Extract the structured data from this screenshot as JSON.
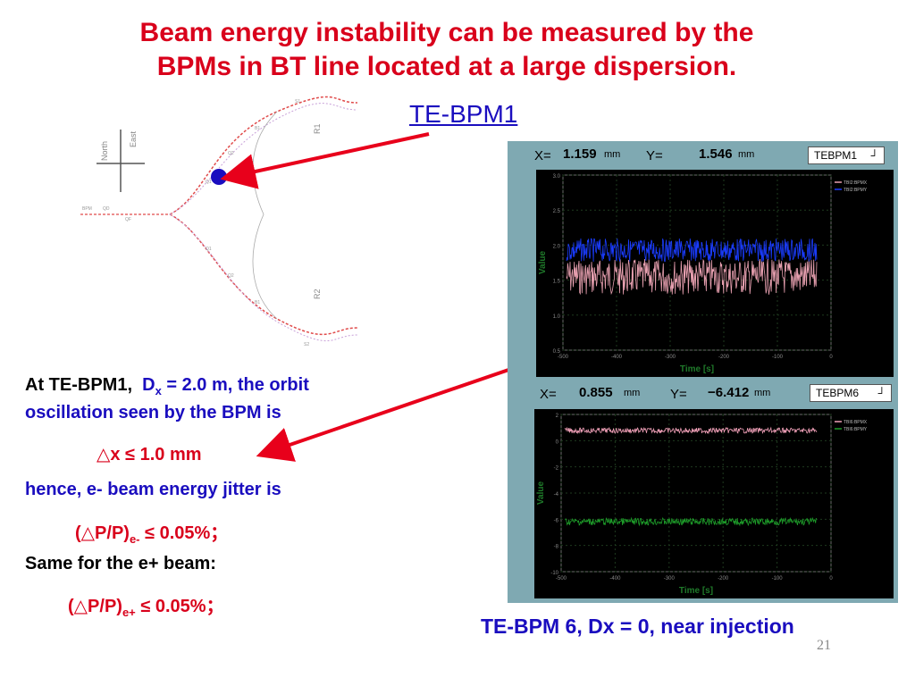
{
  "slide": {
    "title_line1": "Beam energy instability can be measured by the",
    "title_line2": "BPMs in BT line located at a large dispersion.",
    "bpm1_label": "TE-BPM1",
    "page_number": "21",
    "caption": "TE-BPM 6, Dx = 0, near injection"
  },
  "map": {
    "north": "North",
    "east": "East",
    "r1": "R1",
    "r2": "R2"
  },
  "body": {
    "line1_prefix": "At TE-BPM1,",
    "dx_symbol": "D",
    "dx_sub": "x",
    "line1_suffix": "= 2.0 m, the orbit",
    "line2": "oscillation seen by the BPM is",
    "dx_result": "△x ≤ 1.0 mm",
    "hence": "hence,  e- beam energy jitter is",
    "jitter_eminus_main": "(△P/P)",
    "jitter_eminus_sub": "e-",
    "jitter_eminus_val": " ≤ 0.05%；",
    "same_for": "Same for the e+ beam:",
    "jitter_eplus_main": "(△P/P)",
    "jitter_eplus_sub": "e+",
    "jitter_eplus_val": " ≤ 0.05%；"
  },
  "bpm_top": {
    "x_label": "X=",
    "x_value": "1.159",
    "x_unit": "mm",
    "y_label": "Y=",
    "y_value": "1.546",
    "y_unit": "mm",
    "selector": "TEBPM1",
    "legend": [
      "TBI2:BPMX",
      "TBI2:BPMY"
    ],
    "ylabel": "Value",
    "xlabel": "Time [s]",
    "yticks": [
      "3.0",
      "2.5",
      "2.0",
      "1.5",
      "1.0",
      "0.5"
    ],
    "xticks": [
      "-500",
      "-400",
      "-300",
      "-200",
      "-100",
      "0"
    ]
  },
  "bpm_bottom": {
    "x_label": "X=",
    "x_value": "0.855",
    "x_unit": "mm",
    "y_label": "Y=",
    "y_value": "−6.412",
    "y_unit": "mm",
    "selector": "TEBPM6",
    "legend": [
      "TBI6:BPMX",
      "TBI6:BPMY"
    ],
    "ylabel": "Value",
    "xlabel": "Time [s]",
    "yticks": [
      "2",
      "0",
      "-2",
      "-4",
      "-6",
      "-8",
      "-10"
    ],
    "xticks": [
      "-500",
      "-400",
      "-300",
      "-200",
      "-100",
      "0"
    ]
  },
  "colors": {
    "title": "#d9001b",
    "accent_blue": "#1a0dbf",
    "panel_bg": "#7fa9b2",
    "trace_x_top": "#e8a0b0",
    "trace_y_top": "#1a3cff",
    "trace_x_bottom": "#f0a0b8",
    "trace_y_bottom": "#1e9e2a"
  }
}
